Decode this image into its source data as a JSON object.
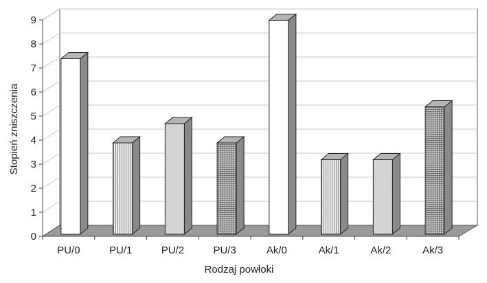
{
  "chart_data": {
    "type": "bar",
    "title": "",
    "xlabel": "Rodzaj powłoki",
    "ylabel": "Stopień zniszczenia",
    "categories": [
      "PU/0",
      "PU/1",
      "PU/2",
      "PU/3",
      "Ak/0",
      "Ak/1",
      "Ak/2",
      "Ak/3"
    ],
    "values": [
      7.3,
      3.8,
      4.6,
      3.8,
      8.9,
      3.1,
      3.1,
      5.3
    ],
    "patterns": [
      "white",
      "vertical-stripes",
      "crosshatch-light",
      "grid-dense",
      "white",
      "vertical-stripes",
      "crosshatch-light",
      "grid-dense"
    ],
    "ylim": [
      0,
      9
    ],
    "yticks": [
      0,
      1,
      2,
      3,
      4,
      5,
      6,
      7,
      8,
      9
    ],
    "grid": true,
    "style": "3d-column",
    "colors": {
      "floor": "#9a9a9a",
      "wall": "#ffffff",
      "gridline": "#c8c8c8",
      "bar_side": "#8a8a8a",
      "bar_top": "#b5b5b5",
      "outline": "#222222"
    }
  }
}
